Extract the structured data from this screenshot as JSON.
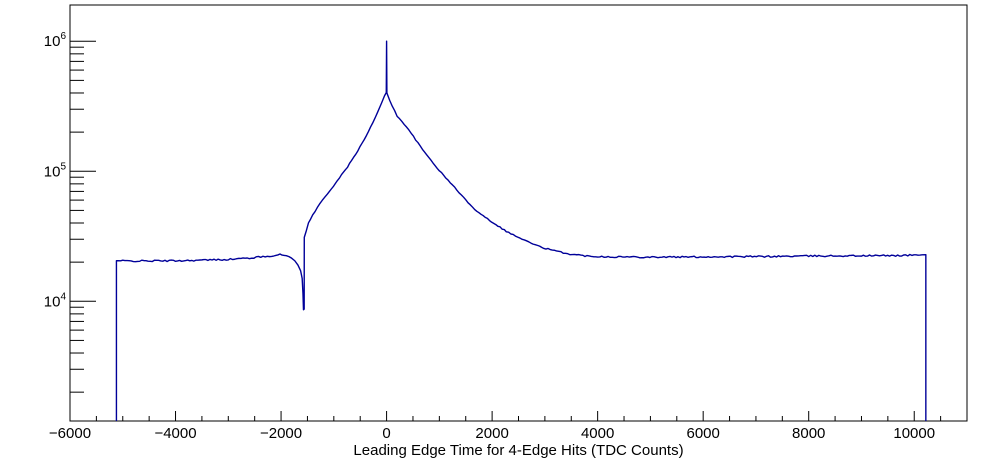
{
  "chart_data": {
    "type": "line",
    "title": "",
    "xlabel": "Leading Edge Time for 4-Edge Hits (TDC Counts)",
    "ylabel": "",
    "xlim": [
      -6000,
      11000
    ],
    "ylim": [
      1200,
      1900000
    ],
    "ylog": true,
    "grid": false,
    "legend": null,
    "line_color": "#000099",
    "axis_color": "#000000",
    "x_tick_values": [
      -6000,
      -4000,
      -2000,
      0,
      2000,
      4000,
      6000,
      8000,
      10000
    ],
    "x_tick_labels": [
      "−6000",
      "−4000",
      "−2000",
      "0",
      "2000",
      "4000",
      "6000",
      "8000",
      "10000"
    ],
    "x_minor_step": 500,
    "y_tick_exponents": [
      4,
      5,
      6
    ],
    "histogram_x_start": -5120,
    "histogram_x_end": 10220,
    "left_plateau_counts": 20500,
    "right_plateau_counts": 22000,
    "dip_x": -1575,
    "dip_counts": 8600,
    "peak_x": 0,
    "peak_counts": 400000,
    "spike_x": 0,
    "spike_counts": 1000000,
    "profile_points": [
      [
        -5120,
        20500
      ],
      [
        -4800,
        20400
      ],
      [
        -4400,
        20450
      ],
      [
        -4000,
        20500
      ],
      [
        -3500,
        20700
      ],
      [
        -3000,
        21000
      ],
      [
        -2600,
        21500
      ],
      [
        -2300,
        22100
      ],
      [
        -2100,
        22600
      ],
      [
        -2020,
        22800
      ],
      [
        -1900,
        22500
      ],
      [
        -1800,
        21500
      ],
      [
        -1740,
        20500
      ],
      [
        -1680,
        19000
      ],
      [
        -1630,
        17200
      ],
      [
        -1600,
        15000
      ],
      [
        -1585,
        11500
      ],
      [
        -1575,
        8600
      ],
      [
        -1562,
        8700
      ],
      [
        -1560,
        31000
      ],
      [
        -1480,
        40000
      ],
      [
        -1400,
        46000
      ],
      [
        -1270,
        56000
      ],
      [
        -1120,
        67000
      ],
      [
        -930,
        85000
      ],
      [
        -740,
        108000
      ],
      [
        -550,
        143000
      ],
      [
        -380,
        188000
      ],
      [
        -265,
        235000
      ],
      [
        -170,
        285000
      ],
      [
        -95,
        335000
      ],
      [
        -40,
        380000
      ],
      [
        -10,
        400000
      ],
      [
        -6,
        400000
      ],
      [
        0,
        1000000
      ],
      [
        6,
        400000
      ],
      [
        60,
        350000
      ],
      [
        200,
        265000
      ],
      [
        380,
        220000
      ],
      [
        680,
        147000
      ],
      [
        1000,
        101000
      ],
      [
        1330,
        72000
      ],
      [
        1630,
        52500
      ],
      [
        1950,
        42000
      ],
      [
        2270,
        34500
      ],
      [
        2570,
        30000
      ],
      [
        2900,
        26300
      ],
      [
        3220,
        24200
      ],
      [
        3520,
        22900
      ],
      [
        3800,
        22300
      ],
      [
        4200,
        22000
      ],
      [
        4800,
        21900
      ],
      [
        5600,
        21900
      ],
      [
        6400,
        22000
      ],
      [
        7200,
        22100
      ],
      [
        8000,
        22300
      ],
      [
        9000,
        22400
      ],
      [
        9800,
        22500
      ],
      [
        10150,
        22800
      ],
      [
        10220,
        22800
      ]
    ]
  }
}
